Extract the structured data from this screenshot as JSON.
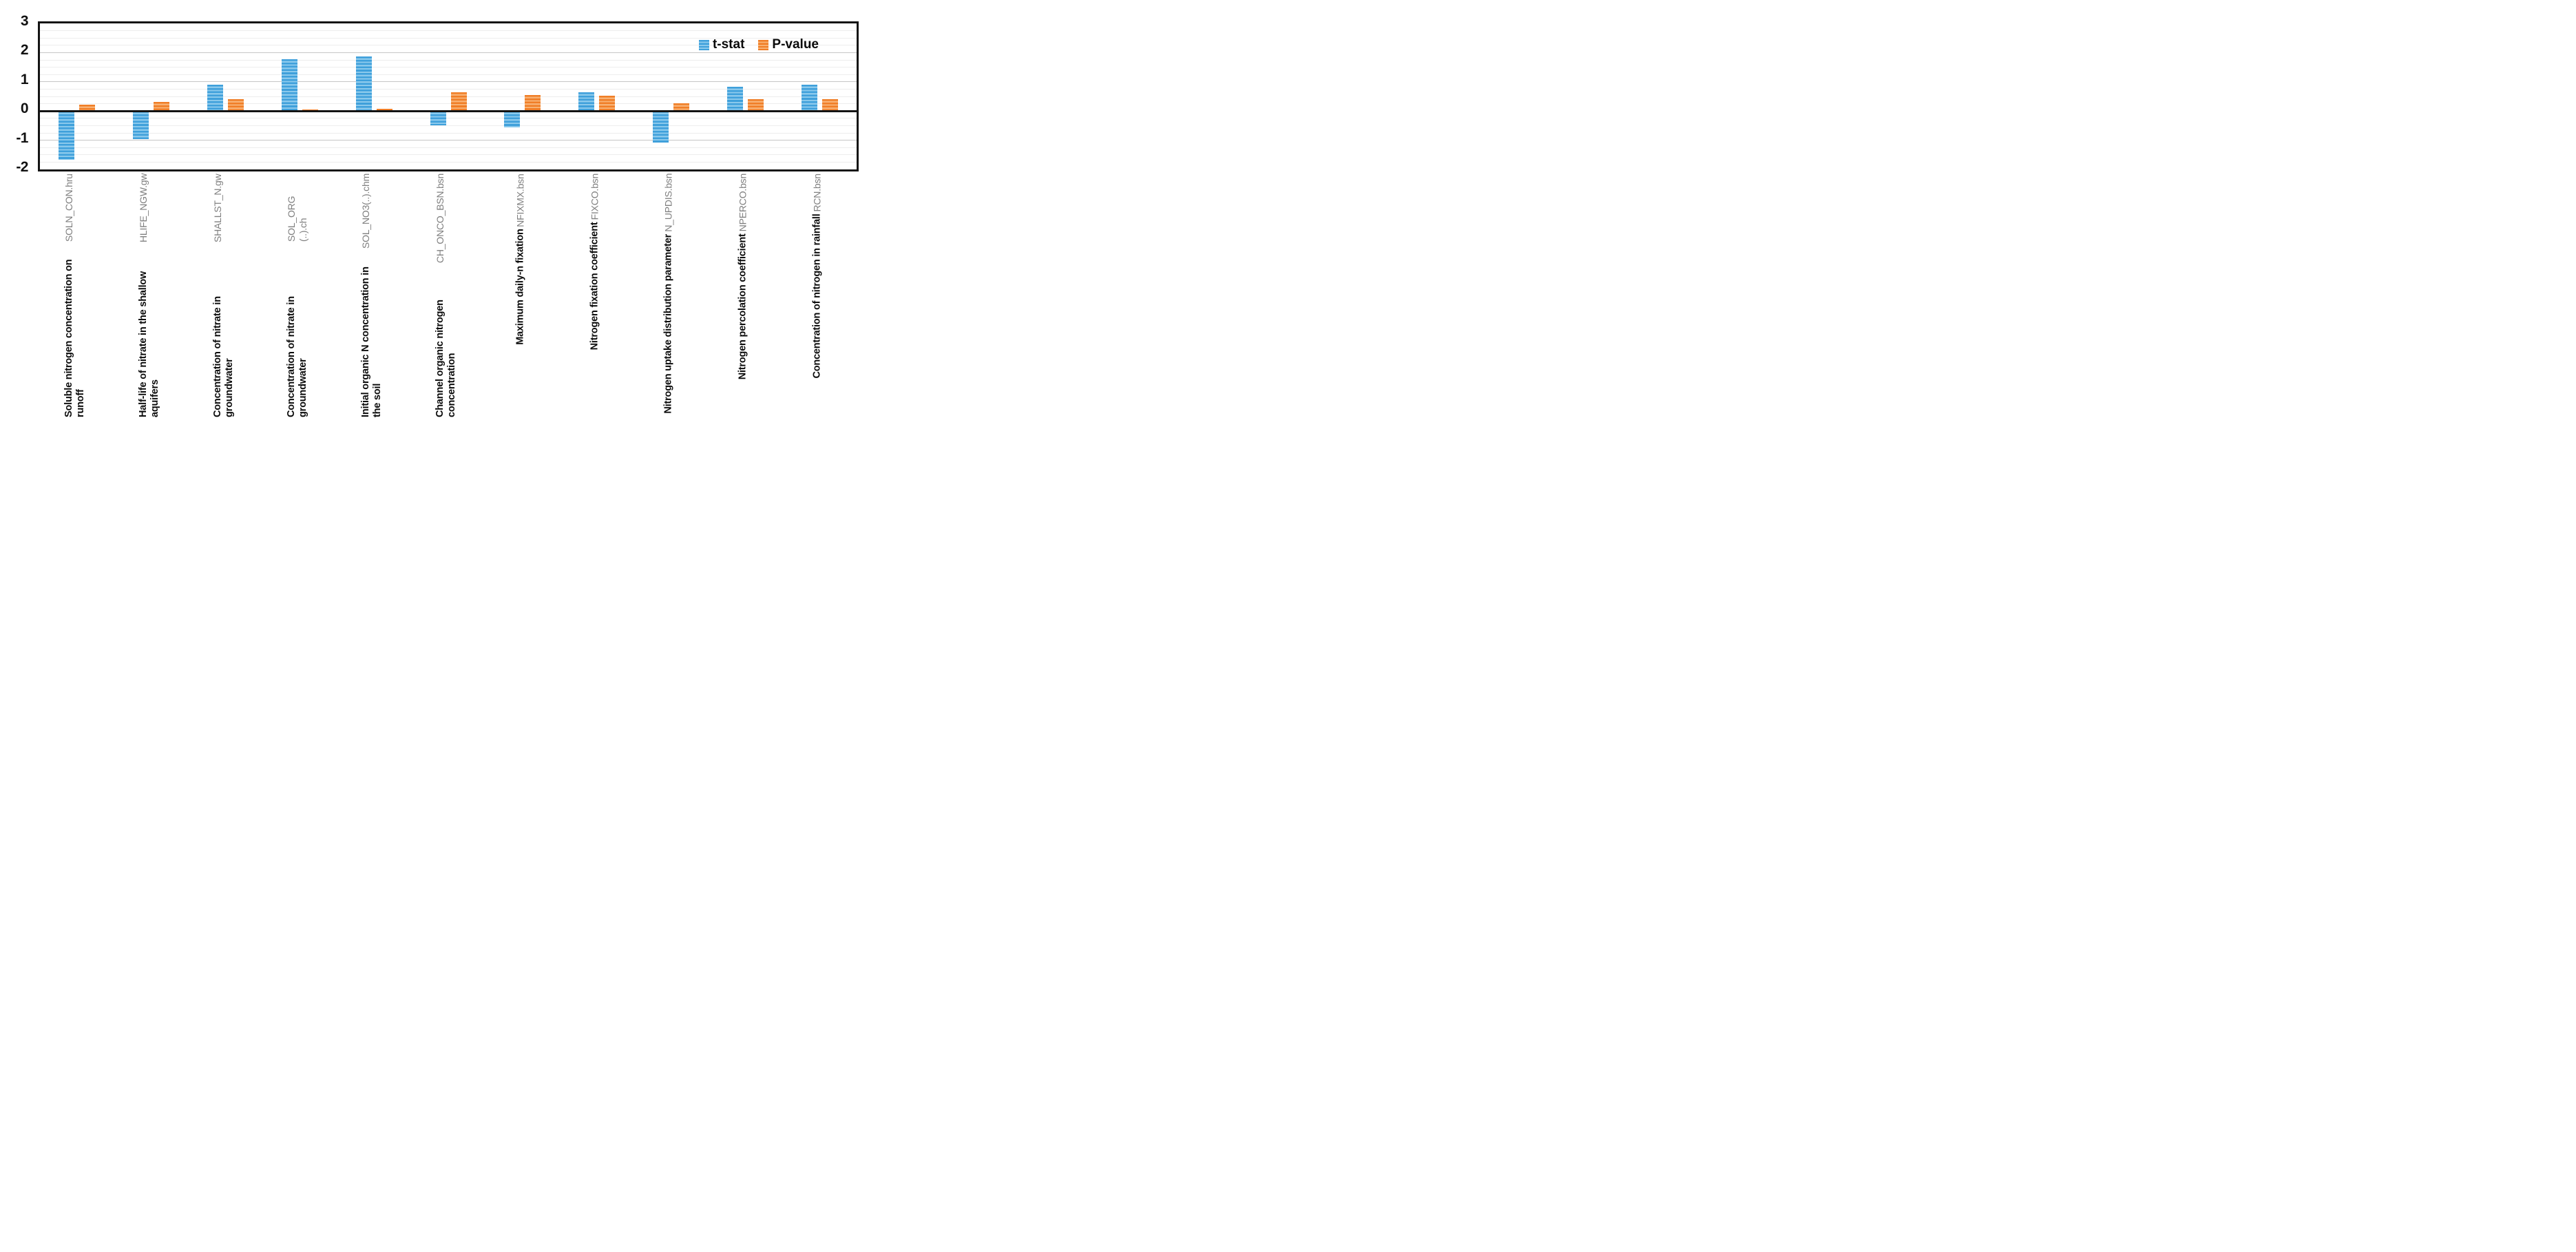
{
  "chart_data": {
    "type": "bar",
    "title": "",
    "xlabel": "",
    "ylabel": "",
    "ylim": [
      -2,
      3
    ],
    "yticks": [
      3,
      2,
      1,
      0,
      -1,
      -2
    ],
    "grid": {
      "minor_step": 0.25,
      "major_step": 1,
      "zero_line": true
    },
    "legend_position": "top-right-inside",
    "categories": [
      {
        "description": "Soluble nitrogen concentration on runoff",
        "parameter": "SOLN_CON.hru"
      },
      {
        "description": "Half-life of nitrate in the shallow aquifers",
        "parameter": "HLIFE_NGW.gw"
      },
      {
        "description": "Concentration of nitrate in groundwater",
        "parameter": "SHALLST_N.gw"
      },
      {
        "description": "Concentration of nitrate in groundwater",
        "parameter": "SOL_ORG (..).ch"
      },
      {
        "description": "Initial organic N concentration in the soil",
        "parameter": "SOL_NO3(..).chm"
      },
      {
        "description": "Channel organic nitrogen concentration",
        "parameter": "CH_ONCO_BSN.bsn"
      },
      {
        "description": "Maximum daily-n fixation",
        "parameter": "NFIXMX.bsn"
      },
      {
        "description": "Nitrogen fixation coefficient",
        "parameter": "FIXCO.bsn"
      },
      {
        "description": "Nitrogen uptake distribution parameter",
        "parameter": "N_UPDIS.bsn"
      },
      {
        "description": "Nitrogen percolation coefficient",
        "parameter": "NPERCO.bsn"
      },
      {
        "description": "Concentration of nitrogen in rainfall",
        "parameter": "RCN.bsn"
      }
    ],
    "series": [
      {
        "name": "t-stat",
        "color": "#3fa0db",
        "stripe_color": "#8ac9ec",
        "values": [
          -1.67,
          -0.96,
          0.9,
          1.78,
          1.87,
          -0.48,
          -0.57,
          0.65,
          -1.09,
          0.82,
          0.89
        ]
      },
      {
        "name": "P-value",
        "color": "#f07e27",
        "stripe_color": "#f8b173",
        "values": [
          0.21,
          0.31,
          0.4,
          0.06,
          0.07,
          0.65,
          0.55,
          0.53,
          0.26,
          0.41,
          0.4
        ]
      }
    ]
  },
  "colors": {
    "axis": "#141414",
    "gridline_minor": "#ededed",
    "gridline_major": "#c6c6c6",
    "category_description": "#0c0c0c",
    "category_parameter": "#7f7f7f",
    "background": "#ffffff"
  }
}
